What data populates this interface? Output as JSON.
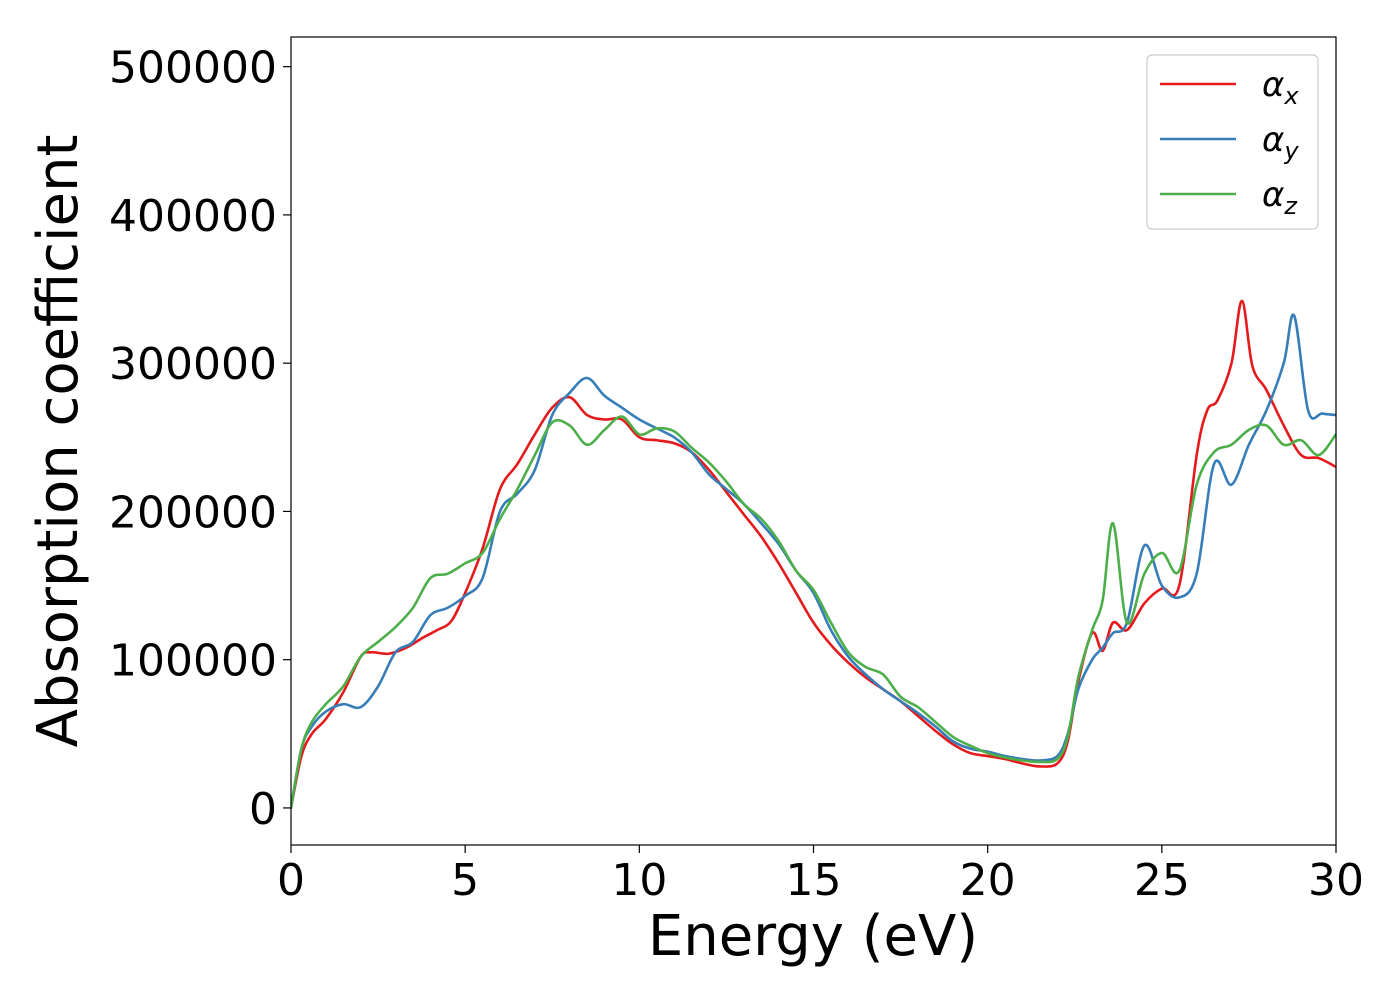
{
  "chart_data": {
    "type": "line",
    "xlabel": "Energy (eV)",
    "ylabel": "Absorption coefficient",
    "xlim": [
      0,
      30
    ],
    "ylim": [
      -25000,
      520000
    ],
    "xticks": [
      0,
      5,
      10,
      15,
      20,
      25,
      30
    ],
    "yticks": [
      0,
      100000,
      200000,
      300000,
      400000,
      500000
    ],
    "grid": false,
    "legend_position": "top-right",
    "series": [
      {
        "name": "αx",
        "legend_main": "α",
        "legend_sub": "x",
        "color": "#e41a1c",
        "x": [
          0,
          0.3,
          0.6,
          1.0,
          1.5,
          2.0,
          2.3,
          2.8,
          3.3,
          3.8,
          4.2,
          4.6,
          5.0,
          5.5,
          6.0,
          6.5,
          7.0,
          7.5,
          8.0,
          8.5,
          9.0,
          9.5,
          10.0,
          10.5,
          11.0,
          11.5,
          12.0,
          12.5,
          13.0,
          13.5,
          14.0,
          14.5,
          15.0,
          15.5,
          16.0,
          16.5,
          17.0,
          17.5,
          18.0,
          18.5,
          19.0,
          19.5,
          20.0,
          20.5,
          21.0,
          21.5,
          22.0,
          22.3,
          22.6,
          23.0,
          23.3,
          23.6,
          24.0,
          24.5,
          25.0,
          25.5,
          26.0,
          26.3,
          26.6,
          27.0,
          27.3,
          27.6,
          28.0,
          28.5,
          29.0,
          29.5,
          30.0
        ],
        "y": [
          0,
          35000,
          50000,
          60000,
          78000,
          102000,
          105000,
          104000,
          108000,
          115000,
          120000,
          126000,
          145000,
          175000,
          215000,
          232000,
          252000,
          270000,
          277000,
          265000,
          262000,
          262000,
          250000,
          248000,
          246000,
          240000,
          228000,
          213000,
          198000,
          183000,
          165000,
          145000,
          125000,
          110000,
          98000,
          88000,
          80000,
          72000,
          62000,
          52000,
          43000,
          37000,
          35000,
          33000,
          30000,
          28000,
          30000,
          45000,
          85000,
          118000,
          106000,
          125000,
          120000,
          138000,
          148000,
          150000,
          238000,
          268000,
          275000,
          300000,
          342000,
          298000,
          282000,
          258000,
          238000,
          236000,
          230000
        ]
      },
      {
        "name": "αy",
        "legend_main": "α",
        "legend_sub": "y",
        "color": "#377eb8",
        "x": [
          0,
          0.3,
          0.6,
          1.0,
          1.5,
          2.0,
          2.5,
          3.0,
          3.5,
          4.0,
          4.5,
          5.0,
          5.5,
          6.0,
          6.5,
          7.0,
          7.5,
          8.0,
          8.5,
          9.0,
          9.5,
          10.0,
          10.5,
          11.0,
          11.5,
          12.0,
          12.5,
          13.0,
          13.5,
          14.0,
          14.5,
          15.0,
          15.5,
          16.0,
          16.5,
          17.0,
          17.5,
          18.0,
          18.5,
          19.0,
          19.5,
          20.0,
          20.5,
          21.0,
          21.5,
          22.0,
          22.3,
          22.6,
          23.0,
          23.3,
          23.6,
          24.0,
          24.5,
          25.0,
          25.5,
          26.0,
          26.5,
          27.0,
          27.5,
          28.0,
          28.5,
          28.8,
          29.2,
          29.6,
          30.0
        ],
        "y": [
          0,
          40000,
          55000,
          65000,
          70000,
          68000,
          82000,
          105000,
          112000,
          130000,
          135000,
          143000,
          155000,
          200000,
          212000,
          228000,
          265000,
          280000,
          290000,
          278000,
          270000,
          262000,
          256000,
          250000,
          240000,
          225000,
          215000,
          205000,
          192000,
          178000,
          160000,
          145000,
          120000,
          102000,
          90000,
          80000,
          72000,
          64000,
          55000,
          45000,
          40000,
          38000,
          35000,
          33000,
          32000,
          35000,
          50000,
          80000,
          100000,
          108000,
          118000,
          125000,
          177000,
          150000,
          142000,
          158000,
          232000,
          218000,
          245000,
          268000,
          300000,
          332000,
          268000,
          266000,
          265000
        ]
      },
      {
        "name": "αz",
        "legend_main": "α",
        "legend_sub": "z",
        "color": "#4daf4a",
        "x": [
          0,
          0.3,
          0.6,
          1.0,
          1.5,
          2.0,
          2.5,
          3.0,
          3.5,
          4.0,
          4.5,
          5.0,
          5.5,
          6.0,
          6.5,
          7.0,
          7.5,
          8.0,
          8.5,
          9.0,
          9.5,
          10.0,
          10.5,
          11.0,
          11.5,
          12.0,
          12.5,
          13.0,
          13.5,
          14.0,
          14.5,
          15.0,
          15.5,
          16.0,
          16.5,
          17.0,
          17.5,
          18.0,
          18.5,
          19.0,
          19.5,
          20.0,
          20.5,
          21.0,
          21.5,
          22.0,
          22.3,
          22.6,
          23.0,
          23.3,
          23.6,
          24.0,
          24.5,
          25.0,
          25.5,
          26.0,
          26.5,
          27.0,
          27.5,
          28.0,
          28.5,
          29.0,
          29.5,
          30.0
        ],
        "y": [
          0,
          40000,
          58000,
          70000,
          82000,
          102000,
          112000,
          122000,
          135000,
          155000,
          158000,
          165000,
          172000,
          195000,
          215000,
          238000,
          260000,
          258000,
          245000,
          255000,
          264000,
          252000,
          256000,
          254000,
          243000,
          233000,
          220000,
          205000,
          195000,
          180000,
          160000,
          147000,
          125000,
          105000,
          95000,
          90000,
          75000,
          68000,
          58000,
          48000,
          42000,
          37000,
          34000,
          32000,
          31000,
          33000,
          48000,
          88000,
          120000,
          140000,
          192000,
          125000,
          158000,
          172000,
          160000,
          218000,
          240000,
          245000,
          255000,
          258000,
          245000,
          248000,
          238000,
          252000
        ]
      }
    ]
  }
}
